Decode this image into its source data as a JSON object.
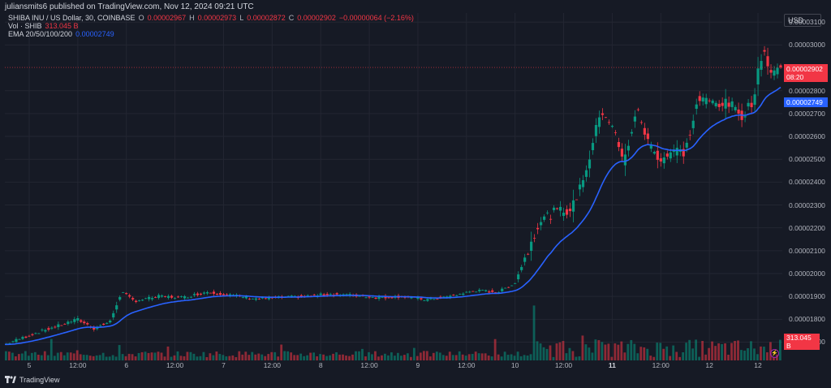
{
  "header": {
    "publisher": "juliansmits6 published on TradingView.com, Nov 12, 2024 09:21 UTC"
  },
  "legend": {
    "symbol": "SHIBA INU / US Dollar, 30, COINBASE",
    "o_label": "O",
    "o_value": "0.00002967",
    "h_label": "H",
    "h_value": "0.00002973",
    "l_label": "L",
    "l_value": "0.00002872",
    "c_label": "C",
    "c_value": "0.00002902",
    "change": "−0.00000064 (−2.16%)",
    "vol_label": "Vol · SHIB",
    "vol_value": "313.045 B",
    "ema_label": "EMA 20/50/100/200",
    "ema_value": "0.00002749"
  },
  "currency_button": "USD",
  "price_axis": {
    "ticks": [
      "0.00003100",
      "0.00003000",
      "0.00002800",
      "0.00002700",
      "0.00002600",
      "0.00002500",
      "0.00002400",
      "0.00002300",
      "0.00002200",
      "0.00002100",
      "0.00002000",
      "0.00001900",
      "0.00001800",
      "0.00001700"
    ],
    "last_price": "0.00002902",
    "countdown": "08:20",
    "ema_last": "0.00002749",
    "volume_last": "313.045 B"
  },
  "time_axis": {
    "ticks": [
      {
        "label": "5",
        "bold": false
      },
      {
        "label": "12:00",
        "bold": false
      },
      {
        "label": "6",
        "bold": false
      },
      {
        "label": "12:00",
        "bold": false
      },
      {
        "label": "7",
        "bold": false
      },
      {
        "label": "12:00",
        "bold": false
      },
      {
        "label": "8",
        "bold": false
      },
      {
        "label": "12:00",
        "bold": false
      },
      {
        "label": "9",
        "bold": false
      },
      {
        "label": "12:00",
        "bold": false
      },
      {
        "label": "10",
        "bold": false
      },
      {
        "label": "12:00",
        "bold": false
      },
      {
        "label": "11",
        "bold": true
      },
      {
        "label": "12:00",
        "bold": false
      },
      {
        "label": "12",
        "bold": false
      },
      {
        "label": "12",
        "bold": false
      }
    ]
  },
  "footer": {
    "brand": "TradingView"
  },
  "colors": {
    "up": "#089981",
    "down": "#f23645",
    "ema": "#2962ff",
    "bg": "#161a25",
    "grid": "#232632"
  },
  "chart_data": {
    "type": "candlestick",
    "symbol": "SHIBA INU / US Dollar",
    "interval": "30",
    "yrange": [
      1.62e-05,
      3.14e-05
    ],
    "anchors_close": [
      [
        0,
        1.69e-05
      ],
      [
        15,
        1.73e-05
      ],
      [
        30,
        1.765e-05
      ],
      [
        45,
        1.8e-05
      ],
      [
        55,
        1.76e-05
      ],
      [
        65,
        1.79e-05
      ],
      [
        72,
        1.92e-05
      ],
      [
        80,
        1.88e-05
      ],
      [
        95,
        1.9e-05
      ],
      [
        110,
        1.895e-05
      ],
      [
        125,
        1.92e-05
      ],
      [
        140,
        1.905e-05
      ],
      [
        155,
        1.89e-05
      ],
      [
        170,
        1.895e-05
      ],
      [
        185,
        1.9e-05
      ],
      [
        200,
        1.91e-05
      ],
      [
        215,
        1.905e-05
      ],
      [
        230,
        1.895e-05
      ],
      [
        245,
        1.9e-05
      ],
      [
        260,
        1.885e-05
      ],
      [
        275,
        1.9e-05
      ],
      [
        290,
        1.925e-05
      ],
      [
        305,
        1.92e-05
      ],
      [
        315,
        1.96e-05
      ],
      [
        320,
        2.05e-05
      ],
      [
        330,
        2.23e-05
      ],
      [
        340,
        2.27e-05
      ],
      [
        350,
        2.28e-05
      ],
      [
        360,
        2.48e-05
      ],
      [
        368,
        2.72e-05
      ],
      [
        375,
        2.65e-05
      ],
      [
        382,
        2.48e-05
      ],
      [
        390,
        2.72e-05
      ],
      [
        398,
        2.56e-05
      ],
      [
        405,
        2.5e-05
      ],
      [
        413,
        2.54e-05
      ],
      [
        420,
        2.53e-05
      ],
      [
        428,
        2.76e-05
      ],
      [
        438,
        2.75e-05
      ],
      [
        448,
        2.74e-05
      ],
      [
        455,
        2.69e-05
      ],
      [
        462,
        2.76e-05
      ],
      [
        468,
        2.99e-05
      ],
      [
        473,
        2.88e-05
      ],
      [
        478,
        2.902e-05
      ]
    ],
    "ema_last": 2.749e-05
  }
}
